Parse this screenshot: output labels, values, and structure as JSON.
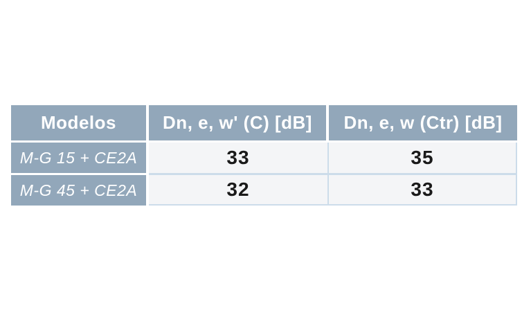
{
  "table": {
    "columns": [
      "Modelos",
      "Dn, e, w' (C) [dB]",
      "Dn, e, w (Ctr) [dB]"
    ],
    "rows": [
      {
        "model": "M-G 15 + CE2A",
        "values": [
          "33",
          "35"
        ]
      },
      {
        "model": "M-G 45 + CE2A",
        "values": [
          "32",
          "33"
        ]
      }
    ]
  },
  "colors": {
    "page_bg": "#ffffff",
    "header_bg": "#92a7ba",
    "cell_bg": "#f4f5f7",
    "grid_divider": "#ccdcea",
    "header_text": "#ffffff",
    "value_text": "#1a1a1a"
  },
  "chart_data": {
    "type": "table",
    "title": "",
    "columns": [
      "Modelos",
      "Dn, e, w' (C) [dB]",
      "Dn, e, w (Ctr) [dB]"
    ],
    "rows": [
      [
        "M-G 15 + CE2A",
        33,
        35
      ],
      [
        "M-G 45 + CE2A",
        32,
        33
      ]
    ]
  }
}
